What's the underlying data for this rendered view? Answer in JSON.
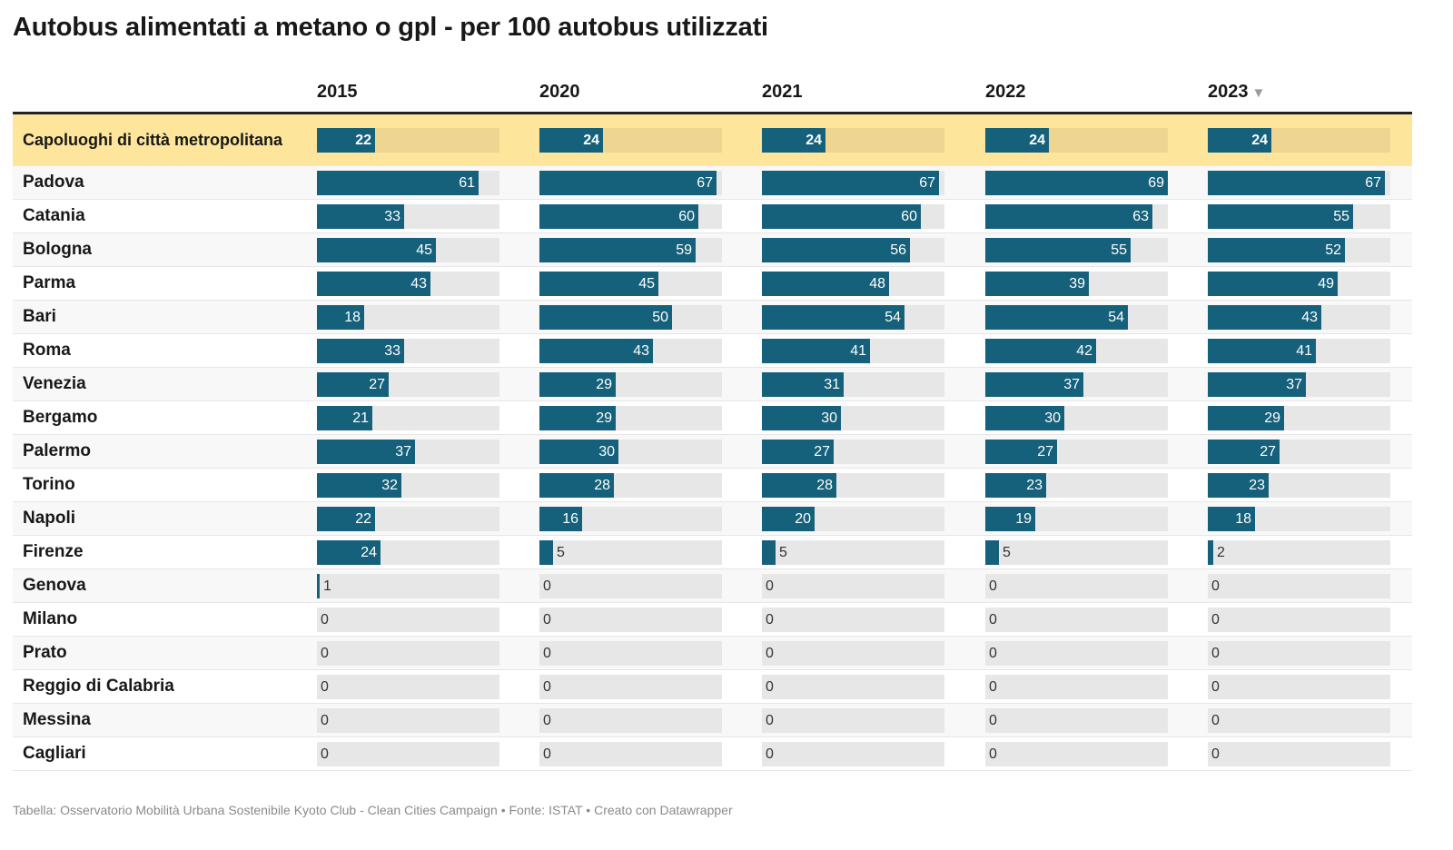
{
  "title": "Autobus alimentati a metano o gpl - per 100 autobus utilizzati",
  "footer": "Tabella: Osservatorio Mobilità Urbana Sostenibile Kyoto Club - Clean Cities Campaign • Fonte: ISTAT • Creato con Datawrapper",
  "sort_icon": "▼",
  "colors": {
    "bar": "#15607a",
    "track": "#e7e7e7",
    "highlight_row": "#fde69c",
    "highlight_track": "#efd592"
  },
  "chart_data": {
    "type": "table",
    "columns": [
      "2015",
      "2020",
      "2021",
      "2022",
      "2023"
    ],
    "sorted_by": "2023",
    "sort_direction": "descending",
    "max_value": 69,
    "rows": [
      {
        "name": "Capoluoghi di città metropolitana",
        "values": [
          22,
          24,
          24,
          24,
          24
        ],
        "highlight": true
      },
      {
        "name": "Padova",
        "values": [
          61,
          67,
          67,
          69,
          67
        ]
      },
      {
        "name": "Catania",
        "values": [
          33,
          60,
          60,
          63,
          55
        ]
      },
      {
        "name": "Bologna",
        "values": [
          45,
          59,
          56,
          55,
          52
        ]
      },
      {
        "name": "Parma",
        "values": [
          43,
          45,
          48,
          39,
          49
        ]
      },
      {
        "name": "Bari",
        "values": [
          18,
          50,
          54,
          54,
          43
        ]
      },
      {
        "name": "Roma",
        "values": [
          33,
          43,
          41,
          42,
          41
        ]
      },
      {
        "name": "Venezia",
        "values": [
          27,
          29,
          31,
          37,
          37
        ]
      },
      {
        "name": "Bergamo",
        "values": [
          21,
          29,
          30,
          30,
          29
        ]
      },
      {
        "name": "Palermo",
        "values": [
          37,
          30,
          27,
          27,
          27
        ]
      },
      {
        "name": "Torino",
        "values": [
          32,
          28,
          28,
          23,
          23
        ]
      },
      {
        "name": "Napoli",
        "values": [
          22,
          16,
          20,
          19,
          18
        ]
      },
      {
        "name": "Firenze",
        "values": [
          24,
          5,
          5,
          5,
          2
        ]
      },
      {
        "name": "Genova",
        "values": [
          1,
          0,
          0,
          0,
          0
        ]
      },
      {
        "name": "Milano",
        "values": [
          0,
          0,
          0,
          0,
          0
        ]
      },
      {
        "name": "Prato",
        "values": [
          0,
          0,
          0,
          0,
          0
        ]
      },
      {
        "name": "Reggio di Calabria",
        "values": [
          0,
          0,
          0,
          0,
          0
        ]
      },
      {
        "name": "Messina",
        "values": [
          0,
          0,
          0,
          0,
          0
        ]
      },
      {
        "name": "Cagliari",
        "values": [
          0,
          0,
          0,
          0,
          0
        ]
      }
    ]
  }
}
